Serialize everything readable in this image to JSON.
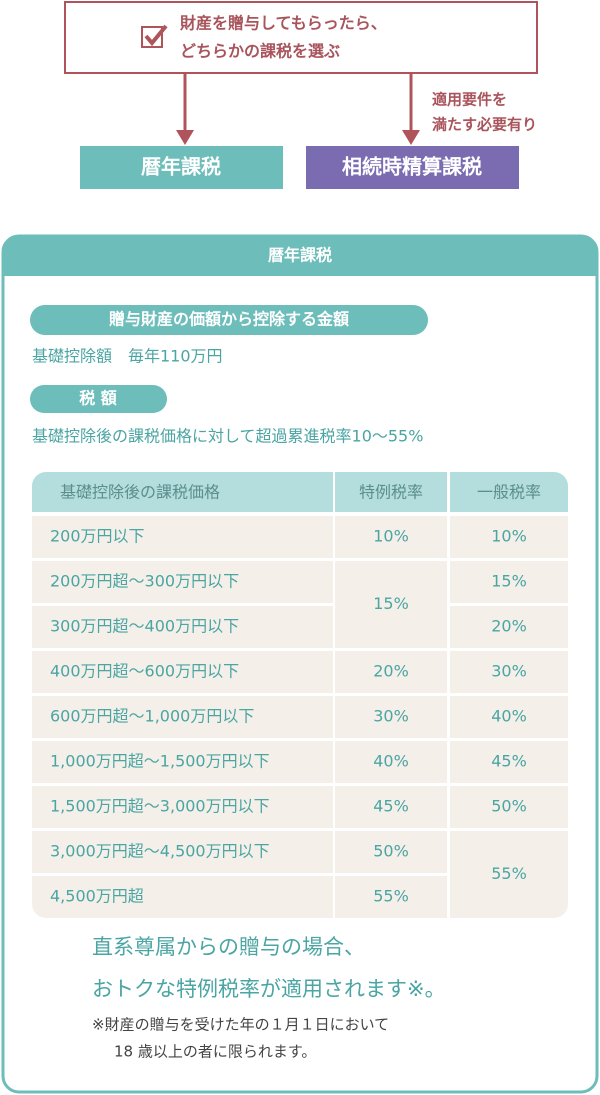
{
  "choice": {
    "lines": [
      "財産を贈与してもらったら、",
      "どちらかの課税を選ぶ"
    ],
    "requirement": [
      "適用要件を",
      "満たす必要有り"
    ],
    "options": [
      "暦年課税",
      "相続時精算課税"
    ]
  },
  "panel": {
    "title": "暦年課税",
    "deduction_heading": "贈与財産の価額から控除する金額",
    "deduction_text": "基礎控除額　毎年110万円",
    "tax_heading": "税 額",
    "tax_text": "基礎控除後の課税価格に対して超過累進税率10〜55%",
    "table": {
      "header": [
        "基礎控除後の課税価格",
        "特例税率",
        "一般税率"
      ],
      "rows": [
        {
          "range": "200万円以下",
          "special": "10%",
          "general": "10%"
        },
        {
          "range": "200万円超〜300万円以下",
          "special": "15%",
          "general": "15%"
        },
        {
          "range": "300万円超〜400万円以下",
          "general": "20%"
        },
        {
          "range": "400万円超〜600万円以下",
          "special": "20%",
          "general": "30%"
        },
        {
          "range": "600万円超〜1,000万円以下",
          "special": "30%",
          "general": "40%"
        },
        {
          "range": "1,000万円超〜1,500万円以下",
          "special": "40%",
          "general": "45%"
        },
        {
          "range": "1,500万円超〜3,000万円以下",
          "special": "45%",
          "general": "50%"
        },
        {
          "range": "3,000万円超〜4,500万円以下",
          "special": "50%",
          "general": "55%"
        },
        {
          "range": "4,500万円超",
          "special": "55%"
        }
      ]
    },
    "highlight": [
      "直系尊属からの贈与の場合、",
      "おトクな特例税率が適用されます※。"
    ],
    "notes": [
      "※財産の贈与を受けた年の１月１日において",
      "18 歳以上の者に限られます。"
    ]
  }
}
